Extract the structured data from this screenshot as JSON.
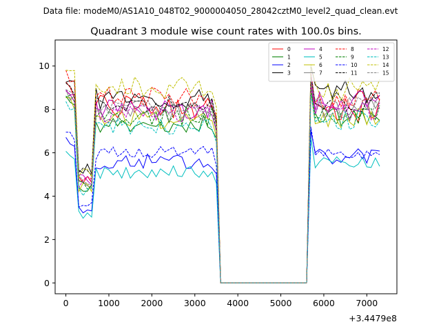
{
  "figure": {
    "suptitle": "Data file: modeM0/AS1A10_048T02_9000004050_28042cztM0_level2_quad_clean.evt"
  },
  "chart_data": {
    "type": "line",
    "title": "Quadrant 3 module wise count rates with 100.0s bins.",
    "xlabel": "",
    "ylabel": "",
    "x_offset_label": "+3.4479e8",
    "xlim": [
      -250,
      7700
    ],
    "ylim": [
      -0.5,
      11.2
    ],
    "xticks": [
      0,
      1000,
      2000,
      3000,
      4000,
      5000,
      6000,
      7000
    ],
    "yticks": [
      0,
      2,
      4,
      6,
      8,
      10
    ],
    "gap_start": 3550,
    "gap_end": 5650,
    "x_end": 7350,
    "legend": {
      "placement": "top-right",
      "columns": 4
    },
    "series": [
      {
        "name": "0",
        "color": "#ff0000",
        "dash": "solid",
        "level": 8.1,
        "dip": 4.6,
        "post": 8.0,
        "amp": 0.55
      },
      {
        "name": "1",
        "color": "#008000",
        "dash": "solid",
        "level": 7.4,
        "dip": 4.4,
        "post": 7.6,
        "amp": 0.45
      },
      {
        "name": "2",
        "color": "#0000ff",
        "dash": "solid",
        "level": 5.6,
        "dip": 3.2,
        "post": 5.8,
        "amp": 0.35
      },
      {
        "name": "3",
        "color": "#000000",
        "dash": "solid",
        "level": 8.5,
        "dip": 5.2,
        "post": 8.8,
        "amp": 0.5
      },
      {
        "name": "4",
        "color": "#bf00bf",
        "dash": "solid",
        "level": 8.0,
        "dip": 4.7,
        "post": 8.3,
        "amp": 0.5
      },
      {
        "name": "5",
        "color": "#00bfbf",
        "dash": "solid",
        "level": 5.1,
        "dip": 3.1,
        "post": 5.5,
        "amp": 0.3
      },
      {
        "name": "6",
        "color": "#bfbf00",
        "dash": "solid",
        "level": 7.5,
        "dip": 4.3,
        "post": 7.6,
        "amp": 0.45
      },
      {
        "name": "7",
        "color": "#808080",
        "dash": "solid",
        "level": 7.8,
        "dip": 4.5,
        "post": 8.0,
        "amp": 0.45
      },
      {
        "name": "8",
        "color": "#ff0000",
        "dash": "dashed",
        "level": 8.6,
        "dip": 4.8,
        "post": 8.5,
        "amp": 0.45
      },
      {
        "name": "9",
        "color": "#008000",
        "dash": "dashed",
        "level": 7.7,
        "dip": 4.5,
        "post": 7.8,
        "amp": 0.45
      },
      {
        "name": "10",
        "color": "#0000ff",
        "dash": "dashed",
        "level": 6.0,
        "dip": 3.6,
        "post": 6.0,
        "amp": 0.3
      },
      {
        "name": "11",
        "color": "#000000",
        "dash": "dashed",
        "level": 8.2,
        "dip": 4.9,
        "post": 8.4,
        "amp": 0.45
      },
      {
        "name": "12",
        "color": "#bf00bf",
        "dash": "dashed",
        "level": 7.8,
        "dip": 4.5,
        "post": 7.9,
        "amp": 0.4
      },
      {
        "name": "13",
        "color": "#00bfbf",
        "dash": "dashed",
        "level": 7.2,
        "dip": 4.2,
        "post": 7.5,
        "amp": 0.4
      },
      {
        "name": "14",
        "color": "#bfbf00",
        "dash": "dashed",
        "level": 9.0,
        "dip": 5.0,
        "post": 8.9,
        "amp": 0.5
      },
      {
        "name": "15",
        "color": "#808080",
        "dash": "dashed",
        "level": 8.0,
        "dip": 4.6,
        "post": 8.1,
        "amp": 0.45
      }
    ]
  }
}
